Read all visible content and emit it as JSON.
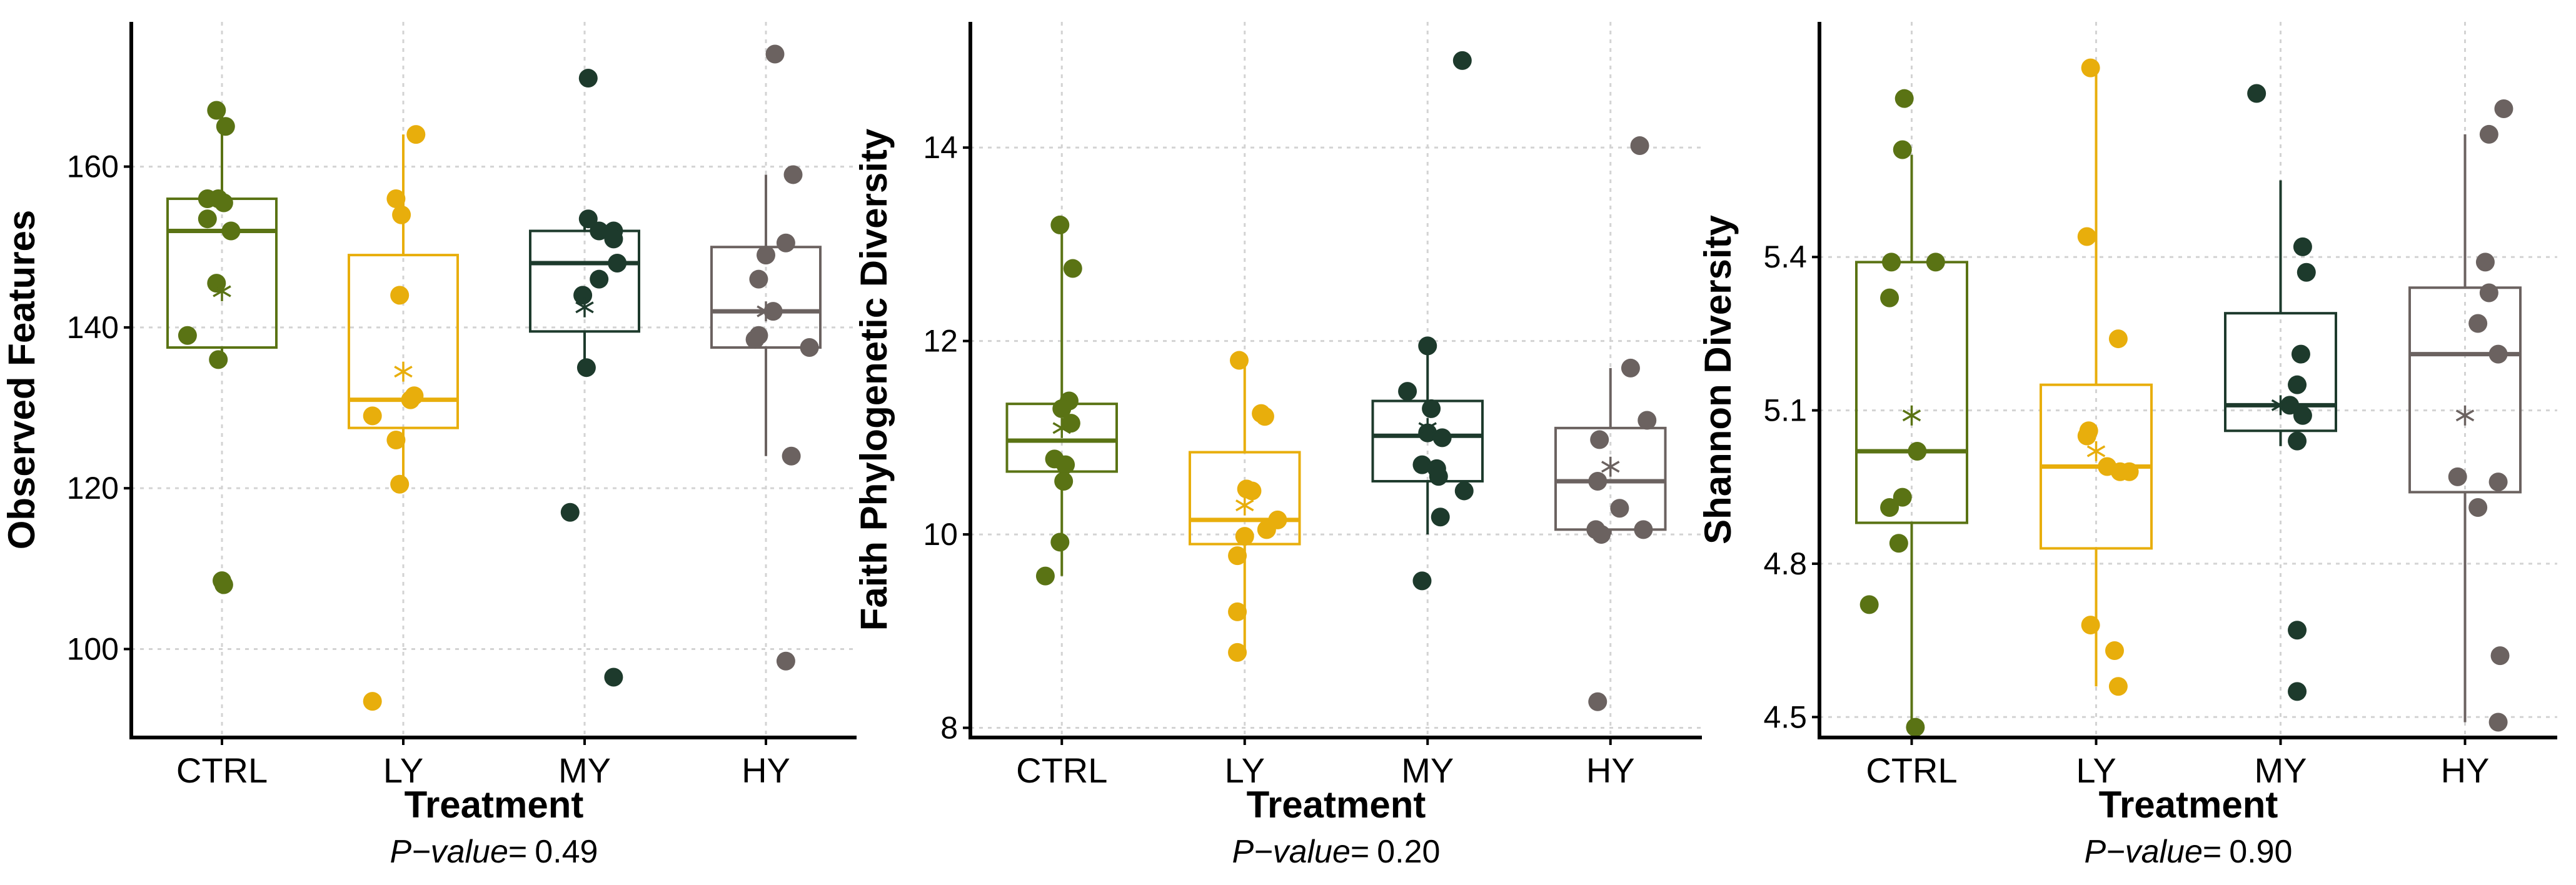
{
  "chart_data": [
    {
      "type": "box",
      "ylabel": "Observed Features",
      "xlabel": "Treatment",
      "pvalue_label": "P−value",
      "pvalue_sep": "=",
      "pvalue": "0.49",
      "categories": [
        "CTRL",
        "LY",
        "MY",
        "HY"
      ],
      "ylim": [
        89,
        178
      ],
      "yticks": [
        100,
        120,
        140,
        160
      ],
      "ytick_labels": [
        "100",
        "120",
        "140",
        "160"
      ],
      "boxes": [
        {
          "q1": 137.5,
          "median": 152.0,
          "q3": 156.0,
          "whisker_low": 136.0,
          "whisker_high": 167.0,
          "mean": 144.5
        },
        {
          "q1": 127.5,
          "median": 131.0,
          "q3": 149.0,
          "whisker_low": 120.0,
          "whisker_high": 164.0,
          "mean": 134.5
        },
        {
          "q1": 139.5,
          "median": 148.0,
          "q3": 152.0,
          "whisker_low": 135.0,
          "whisker_high": 153.0,
          "mean": 142.5
        },
        {
          "q1": 137.5,
          "median": 142.0,
          "q3": 150.0,
          "whisker_low": 124.0,
          "whisker_high": 159.0,
          "mean": 142.0
        }
      ],
      "points": [
        [
          {
            "dx": -0.03,
            "y": 167.0
          },
          {
            "dx": 0.02,
            "y": 165.0
          },
          {
            "dx": -0.08,
            "y": 156.0
          },
          {
            "dx": -0.02,
            "y": 156.0
          },
          {
            "dx": 0.01,
            "y": 155.5
          },
          {
            "dx": -0.08,
            "y": 153.5
          },
          {
            "dx": 0.05,
            "y": 152.0
          },
          {
            "dx": -0.03,
            "y": 145.5
          },
          {
            "dx": -0.19,
            "y": 139.0
          },
          {
            "dx": -0.02,
            "y": 136.0
          },
          {
            "dx": 0.0,
            "y": 108.5
          },
          {
            "dx": 0.01,
            "y": 108.0
          }
        ],
        [
          {
            "dx": 0.07,
            "y": 164.0
          },
          {
            "dx": -0.04,
            "y": 156.0
          },
          {
            "dx": -0.01,
            "y": 154.0
          },
          {
            "dx": -0.02,
            "y": 144.0
          },
          {
            "dx": 0.06,
            "y": 131.5
          },
          {
            "dx": 0.04,
            "y": 131.0
          },
          {
            "dx": -0.17,
            "y": 129.0
          },
          {
            "dx": -0.04,
            "y": 126.0
          },
          {
            "dx": -0.02,
            "y": 120.5
          },
          {
            "dx": -0.17,
            "y": 93.5
          }
        ],
        [
          {
            "dx": 0.02,
            "y": 171.0
          },
          {
            "dx": 0.02,
            "y": 153.5
          },
          {
            "dx": 0.08,
            "y": 152.0
          },
          {
            "dx": 0.16,
            "y": 152.0
          },
          {
            "dx": 0.16,
            "y": 151.0
          },
          {
            "dx": 0.18,
            "y": 148.0
          },
          {
            "dx": 0.08,
            "y": 146.0
          },
          {
            "dx": -0.01,
            "y": 144.0
          },
          {
            "dx": 0.01,
            "y": 135.0
          },
          {
            "dx": -0.08,
            "y": 117.0
          },
          {
            "dx": 0.16,
            "y": 96.5
          }
        ],
        [
          {
            "dx": 0.05,
            "y": 174.0
          },
          {
            "dx": 0.15,
            "y": 159.0
          },
          {
            "dx": 0.11,
            "y": 150.5
          },
          {
            "dx": 0.0,
            "y": 149.0
          },
          {
            "dx": -0.04,
            "y": 146.0
          },
          {
            "dx": 0.04,
            "y": 142.0
          },
          {
            "dx": -0.04,
            "y": 139.0
          },
          {
            "dx": -0.06,
            "y": 138.5
          },
          {
            "dx": 0.24,
            "y": 137.5
          },
          {
            "dx": 0.14,
            "y": 124.0
          },
          {
            "dx": 0.11,
            "y": 98.5
          }
        ]
      ]
    },
    {
      "type": "box",
      "ylabel": "Faith Phylogenetic Diversity",
      "xlabel": "Treatment",
      "pvalue_label": "P−value",
      "pvalue_sep": "=",
      "pvalue": "0.20",
      "categories": [
        "CTRL",
        "LY",
        "MY",
        "HY"
      ],
      "ylim": [
        7.9,
        15.3
      ],
      "yticks": [
        8,
        10,
        12,
        14
      ],
      "ytick_labels": [
        "8",
        "10",
        "12",
        "14"
      ],
      "boxes": [
        {
          "q1": 10.65,
          "median": 10.97,
          "q3": 11.35,
          "whisker_low": 9.57,
          "whisker_high": 13.2,
          "mean": 11.1
        },
        {
          "q1": 9.9,
          "median": 10.15,
          "q3": 10.85,
          "whisker_low": 8.78,
          "whisker_high": 11.8,
          "mean": 10.3
        },
        {
          "q1": 10.55,
          "median": 11.02,
          "q3": 11.38,
          "whisker_low": 10.0,
          "whisker_high": 11.95,
          "mean": 11.1
        },
        {
          "q1": 10.05,
          "median": 10.55,
          "q3": 11.1,
          "whisker_low": 10.0,
          "whisker_high": 11.72,
          "mean": 10.7
        }
      ],
      "points": [
        [
          {
            "dx": -0.01,
            "y": 13.2
          },
          {
            "dx": 0.06,
            "y": 12.75
          },
          {
            "dx": 0.04,
            "y": 11.38
          },
          {
            "dx": 0.0,
            "y": 11.3
          },
          {
            "dx": 0.05,
            "y": 11.15
          },
          {
            "dx": -0.04,
            "y": 10.78
          },
          {
            "dx": 0.02,
            "y": 10.72
          },
          {
            "dx": 0.01,
            "y": 10.55
          },
          {
            "dx": -0.01,
            "y": 9.92
          },
          {
            "dx": -0.09,
            "y": 9.57
          }
        ],
        [
          {
            "dx": -0.03,
            "y": 11.8
          },
          {
            "dx": 0.09,
            "y": 11.25
          },
          {
            "dx": 0.11,
            "y": 11.22
          },
          {
            "dx": 0.01,
            "y": 10.47
          },
          {
            "dx": 0.04,
            "y": 10.45
          },
          {
            "dx": 0.18,
            "y": 10.15
          },
          {
            "dx": 0.12,
            "y": 10.05
          },
          {
            "dx": 0.0,
            "y": 9.98
          },
          {
            "dx": -0.04,
            "y": 9.78
          },
          {
            "dx": -0.04,
            "y": 9.2
          },
          {
            "dx": -0.04,
            "y": 8.78
          }
        ],
        [
          {
            "dx": 0.19,
            "y": 14.9
          },
          {
            "dx": 0.0,
            "y": 11.95
          },
          {
            "dx": -0.11,
            "y": 11.48
          },
          {
            "dx": 0.02,
            "y": 11.3
          },
          {
            "dx": 0.0,
            "y": 11.05
          },
          {
            "dx": 0.08,
            "y": 11.0
          },
          {
            "dx": -0.03,
            "y": 10.72
          },
          {
            "dx": 0.05,
            "y": 10.68
          },
          {
            "dx": 0.06,
            "y": 10.6
          },
          {
            "dx": 0.2,
            "y": 10.45
          },
          {
            "dx": 0.07,
            "y": 10.18
          },
          {
            "dx": -0.03,
            "y": 9.52
          }
        ],
        [
          {
            "dx": 0.16,
            "y": 14.02
          },
          {
            "dx": 0.11,
            "y": 11.72
          },
          {
            "dx": 0.2,
            "y": 11.18
          },
          {
            "dx": -0.06,
            "y": 10.98
          },
          {
            "dx": -0.07,
            "y": 10.55
          },
          {
            "dx": 0.05,
            "y": 10.27
          },
          {
            "dx": -0.08,
            "y": 10.05
          },
          {
            "dx": -0.05,
            "y": 10.0
          },
          {
            "dx": 0.18,
            "y": 10.05
          },
          {
            "dx": -0.07,
            "y": 8.27
          }
        ]
      ]
    },
    {
      "type": "box",
      "ylabel": "Shannon Diversity",
      "xlabel": "Treatment",
      "pvalue_label": "P−value",
      "pvalue_sep": "=",
      "pvalue": "0.90",
      "categories": [
        "CTRL",
        "LY",
        "MY",
        "HY"
      ],
      "ylim": [
        4.46,
        5.86
      ],
      "yticks": [
        4.5,
        4.8,
        5.1,
        5.4
      ],
      "ytick_labels": [
        "4.5",
        "4.8",
        "5.1",
        "5.4"
      ],
      "boxes": [
        {
          "q1": 4.88,
          "median": 5.02,
          "q3": 5.39,
          "whisker_low": 4.48,
          "whisker_high": 5.6,
          "mean": 5.09
        },
        {
          "q1": 4.83,
          "median": 4.99,
          "q3": 5.15,
          "whisker_low": 4.56,
          "whisker_high": 5.77,
          "mean": 5.02
        },
        {
          "q1": 5.06,
          "median": 5.11,
          "q3": 5.29,
          "whisker_low": 5.03,
          "whisker_high": 5.55,
          "mean": 5.11
        },
        {
          "q1": 4.94,
          "median": 5.21,
          "q3": 5.34,
          "whisker_low": 4.49,
          "whisker_high": 5.64,
          "mean": 5.09
        }
      ],
      "points": [
        [
          {
            "dx": -0.04,
            "y": 5.71
          },
          {
            "dx": -0.05,
            "y": 5.61
          },
          {
            "dx": -0.11,
            "y": 5.39
          },
          {
            "dx": 0.13,
            "y": 5.39
          },
          {
            "dx": -0.12,
            "y": 5.32
          },
          {
            "dx": 0.03,
            "y": 5.02
          },
          {
            "dx": -0.05,
            "y": 4.93
          },
          {
            "dx": -0.12,
            "y": 4.91
          },
          {
            "dx": -0.07,
            "y": 4.84
          },
          {
            "dx": -0.23,
            "y": 4.72
          },
          {
            "dx": 0.02,
            "y": 4.48
          }
        ],
        [
          {
            "dx": -0.03,
            "y": 5.77
          },
          {
            "dx": -0.05,
            "y": 5.44
          },
          {
            "dx": 0.12,
            "y": 5.24
          },
          {
            "dx": -0.04,
            "y": 5.06
          },
          {
            "dx": -0.05,
            "y": 5.05
          },
          {
            "dx": 0.06,
            "y": 4.99
          },
          {
            "dx": 0.13,
            "y": 4.98
          },
          {
            "dx": 0.18,
            "y": 4.98
          },
          {
            "dx": -0.03,
            "y": 4.68
          },
          {
            "dx": 0.1,
            "y": 4.63
          },
          {
            "dx": 0.12,
            "y": 4.56
          }
        ],
        [
          {
            "dx": -0.13,
            "y": 5.72
          },
          {
            "dx": 0.12,
            "y": 5.42
          },
          {
            "dx": 0.14,
            "y": 5.37
          },
          {
            "dx": 0.11,
            "y": 5.21
          },
          {
            "dx": 0.09,
            "y": 5.15
          },
          {
            "dx": 0.05,
            "y": 5.11
          },
          {
            "dx": 0.12,
            "y": 5.09
          },
          {
            "dx": 0.09,
            "y": 5.04
          },
          {
            "dx": 0.09,
            "y": 4.67
          },
          {
            "dx": 0.09,
            "y": 4.55
          }
        ],
        [
          {
            "dx": 0.21,
            "y": 5.69
          },
          {
            "dx": 0.13,
            "y": 5.64
          },
          {
            "dx": 0.11,
            "y": 5.39
          },
          {
            "dx": 0.13,
            "y": 5.33
          },
          {
            "dx": 0.07,
            "y": 5.27
          },
          {
            "dx": 0.18,
            "y": 5.21
          },
          {
            "dx": -0.04,
            "y": 4.97
          },
          {
            "dx": 0.18,
            "y": 4.96
          },
          {
            "dx": 0.07,
            "y": 4.91
          },
          {
            "dx": 0.19,
            "y": 4.62
          },
          {
            "dx": 0.18,
            "y": 4.49
          }
        ]
      ]
    }
  ],
  "colors": {
    "CTRL": "#5a7314",
    "LY": "#e8ae0c",
    "MY": "#1d3a2c",
    "HY": "#6b6260",
    "axis": "#000000",
    "grid": "#d3d3d3",
    "text": "#000000"
  }
}
